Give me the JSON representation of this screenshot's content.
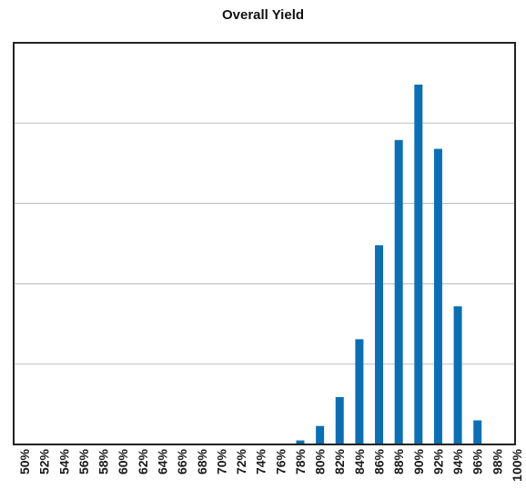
{
  "chart_data": {
    "type": "bar",
    "title": "Overall Yield",
    "xlabel": "",
    "ylabel": "",
    "categories": [
      "50%",
      "52%",
      "54%",
      "56%",
      "58%",
      "60%",
      "62%",
      "64%",
      "66%",
      "68%",
      "70%",
      "72%",
      "74%",
      "76%",
      "78%",
      "80%",
      "82%",
      "84%",
      "86%",
      "88%",
      "90%",
      "92%",
      "94%",
      "96%",
      "98%",
      "100%"
    ],
    "values": [
      0,
      0,
      0,
      0,
      0,
      0,
      0,
      0,
      0,
      0,
      0,
      0,
      0,
      0,
      0.5,
      2.3,
      5.9,
      13.1,
      24.8,
      37.9,
      44.8,
      36.8,
      17.2,
      3.0,
      0,
      0
    ],
    "ylim": [
      0,
      50
    ],
    "grid": true,
    "bar_color": "#0a6fb5",
    "grid_color": "#c4c4c4",
    "axis_color": "#222222"
  }
}
